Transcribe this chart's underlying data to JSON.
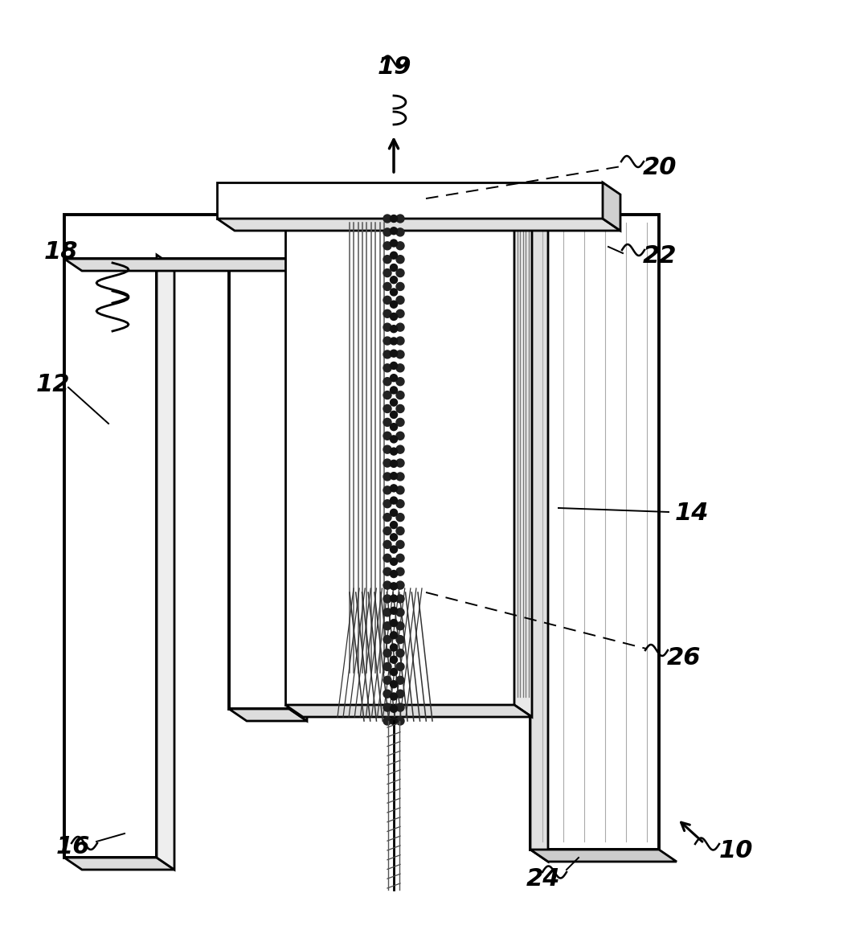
{
  "background_color": "#ffffff",
  "line_color": "#000000",
  "figure_width": 10.54,
  "figure_height": 11.67,
  "font_size": 22,
  "font_style": "italic",
  "font_weight": "bold"
}
